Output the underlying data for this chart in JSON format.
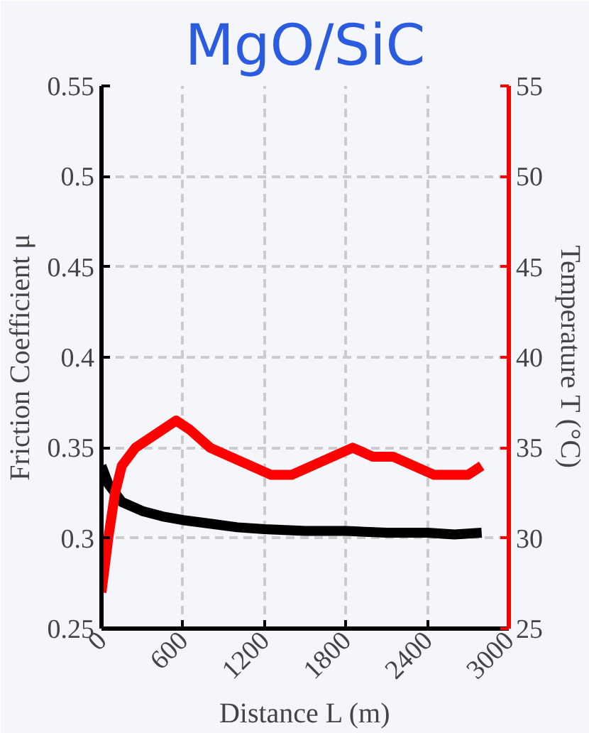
{
  "chart_data": {
    "type": "line",
    "title": "MgO/SiC",
    "xlabel": "Distance L (m)",
    "ylabel": "Friction Coefficient μ",
    "y2label": "Temperature T (°C)",
    "xlim": [
      0,
      3000
    ],
    "xticks": [
      0,
      600,
      1200,
      1800,
      2400,
      3000
    ],
    "ylim": [
      0.25,
      0.55
    ],
    "yticks": [
      0.25,
      0.3,
      0.35,
      0.4,
      0.45,
      0.5,
      0.55
    ],
    "y2lim": [
      25,
      55
    ],
    "y2ticks": [
      25,
      30,
      35,
      40,
      45,
      50,
      55
    ],
    "grid": true,
    "series": [
      {
        "color": "#000000",
        "x": [
          0,
          50,
          150,
          300,
          450,
          600,
          800,
          1000,
          1200,
          1500,
          1800,
          2100,
          2400,
          2600,
          2800
        ],
        "values": [
          0.34,
          0.33,
          0.32,
          0.315,
          0.312,
          0.31,
          0.308,
          0.306,
          0.305,
          0.304,
          0.304,
          0.303,
          0.303,
          0.302,
          0.303
        ]
      },
      {
        "color": "#ff0000",
        "axis": "y2",
        "x": [
          0,
          50,
          100,
          150,
          250,
          350,
          450,
          550,
          650,
          800,
          950,
          1100,
          1250,
          1400,
          1550,
          1700,
          1850,
          2000,
          2150,
          2300,
          2450,
          2600,
          2700,
          2800
        ],
        "values": [
          27,
          30,
          32.5,
          34,
          35,
          35.5,
          36,
          36.5,
          36,
          35,
          34.5,
          34,
          33.5,
          33.5,
          34,
          34.5,
          35,
          34.5,
          34.5,
          34,
          33.5,
          33.5,
          33.5,
          34
        ]
      }
    ]
  }
}
